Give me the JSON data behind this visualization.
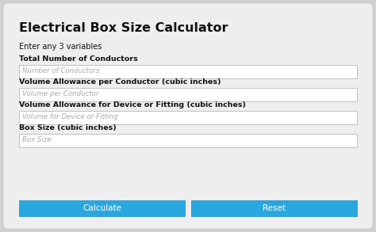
{
  "title": "Electrical Box Size Calculator",
  "subtitle": "Enter any 3 variables",
  "fields": [
    {
      "label": "Total Number of Conductors",
      "placeholder": "Number of Conductors"
    },
    {
      "label": "Volume Allowance per Conductor (cubic inches)",
      "placeholder": "Volume per Conductor"
    },
    {
      "label": "Volume Allowance for Device or Fitting (cubic inches)",
      "placeholder": "Volume for Device or Fitting"
    },
    {
      "label": "Box Size (cubic inches)",
      "placeholder": "Box Size"
    }
  ],
  "buttons": [
    "Calculate",
    "Reset"
  ],
  "outer_bg": "#d0d0d0",
  "panel_color": "#eeeeee",
  "field_bg": "#ffffff",
  "field_border": "#c0c0c0",
  "label_color": "#111111",
  "placeholder_color": "#aaaaaa",
  "button_color": "#29a8e0",
  "button_text_color": "#ffffff",
  "title_fontsize": 11.5,
  "label_fontsize": 6.8,
  "placeholder_fontsize": 6.2,
  "button_fontsize": 7.5,
  "subtitle_fontsize": 7.0
}
